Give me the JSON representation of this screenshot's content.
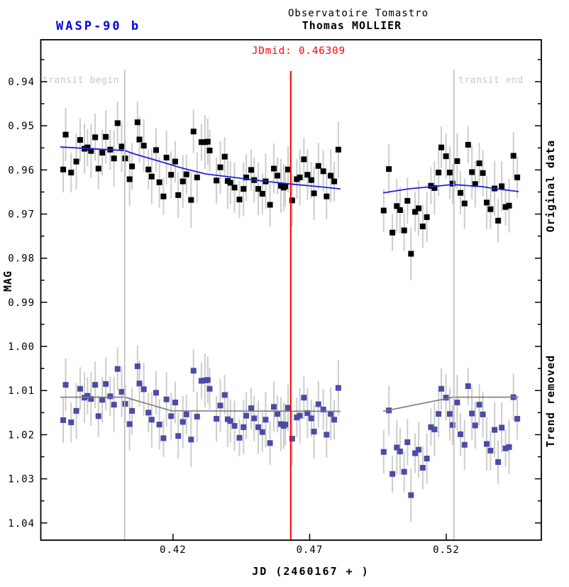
{
  "header": {
    "planet": "WASP-90 b",
    "observatory": "Observatoire Tomastro",
    "observer": "Thomas MOLLIER"
  },
  "annotations": {
    "jdmid_label": "JDmid: 0.46309",
    "jdmid_jd": 0.46309,
    "transit_begin_label": "transit begin",
    "transit_begin_jd": 0.4023,
    "transit_end_label": "transit end",
    "transit_end_jd": 0.5228
  },
  "axes": {
    "xlabel": "JD (2460167 + )",
    "ylabel": "MAG",
    "xticks": [
      0.42,
      0.47,
      0.52
    ],
    "yticks": [
      0.94,
      0.95,
      0.96,
      0.97,
      0.98,
      0.99,
      1.0,
      1.01,
      1.02,
      1.03,
      1.04
    ],
    "y_minor_step": 0.005,
    "xlim": [
      0.3716,
      0.5548
    ],
    "ylim": [
      0.9305,
      1.0439
    ]
  },
  "series_labels": {
    "original": "Original data",
    "detrended": "Trend removed"
  },
  "colors": {
    "original_points": "#000000",
    "detrended_points": "#4b4ba6",
    "original_trend_curve": "#2121dd",
    "detrended_model_curve": "#7a7a7a",
    "jdmid_line": "#ff0000",
    "transit_lines": "#bdbdbd",
    "transit_labels": "#c9c9c9",
    "error_bars": "#cdcdcd",
    "planet_title": "#0000e6"
  },
  "chart_data": {
    "type": "scatter",
    "title": "WASP-90 b",
    "xlabel": "JD (2460167 + )",
    "ylabel": "MAG",
    "xlim": [
      0.3716,
      0.5548
    ],
    "ylim": [
      0.9305,
      1.0439
    ],
    "xticks": [
      0.42,
      0.47,
      0.52
    ],
    "yticks": [
      0.94,
      0.95,
      0.96,
      0.97,
      0.98,
      0.99,
      1.0,
      1.01,
      1.02,
      1.03,
      1.04
    ],
    "grid": false,
    "y_axis_is_magnitude_increasing_down": true,
    "jd": [
      0.3798,
      0.3807,
      0.3827,
      0.3846,
      0.386,
      0.3876,
      0.3887,
      0.39,
      0.3915,
      0.3927,
      0.3941,
      0.3954,
      0.397,
      0.3984,
      0.3997,
      0.4012,
      0.4025,
      0.4041,
      0.405,
      0.407,
      0.4077,
      0.4093,
      0.411,
      0.4122,
      0.4138,
      0.415,
      0.4165,
      0.4176,
      0.4193,
      0.4208,
      0.4219,
      0.4236,
      0.4249,
      0.4266,
      0.4275,
      0.4288,
      0.4304,
      0.4317,
      0.4327,
      0.4334,
      0.4359,
      0.4373,
      0.4389,
      0.44,
      0.441,
      0.4425,
      0.4443,
      0.4458,
      0.4468,
      0.4486,
      0.4497,
      0.4512,
      0.4527,
      0.4539,
      0.4555,
      0.4569,
      0.4582,
      0.4595,
      0.4605,
      0.4611,
      0.4621,
      0.4636,
      0.4653,
      0.4664,
      0.4679,
      0.4692,
      0.4706,
      0.4716,
      0.4732,
      0.475,
      0.4762,
      0.4777,
      0.479,
      0.4805,
      0.4971,
      0.499,
      0.5003,
      0.5019,
      0.5031,
      0.5046,
      0.5058,
      0.5071,
      0.5086,
      0.5099,
      0.5114,
      0.5129,
      0.5144,
      0.5157,
      0.5172,
      0.5182,
      0.5199,
      0.5213,
      0.5223,
      0.524,
      0.5252,
      0.5267,
      0.528,
      0.5294,
      0.5306,
      0.5321,
      0.5334,
      0.5348,
      0.5362,
      0.5377,
      0.539,
      0.5403,
      0.5417,
      0.543,
      0.5446,
      0.546
    ],
    "err": [
      0.0052,
      0.006,
      0.0045,
      0.0063,
      0.0049,
      0.0057,
      0.0042,
      0.0061,
      0.0053,
      0.0047,
      0.0052,
      0.006,
      0.0045,
      0.0063,
      0.0049,
      0.0057,
      0.0042,
      0.0061,
      0.0053,
      0.0047,
      0.0052,
      0.006,
      0.0045,
      0.0063,
      0.0049,
      0.0057,
      0.0042,
      0.0061,
      0.0053,
      0.0047,
      0.0052,
      0.006,
      0.0045,
      0.0063,
      0.0049,
      0.0057,
      0.0042,
      0.0061,
      0.0053,
      0.0047,
      0.0052,
      0.006,
      0.0045,
      0.0063,
      0.0049,
      0.0057,
      0.0042,
      0.0061,
      0.0053,
      0.0047,
      0.0052,
      0.006,
      0.0045,
      0.0063,
      0.0049,
      0.0057,
      0.0042,
      0.0061,
      0.0053,
      0.0047,
      0.0052,
      0.006,
      0.0045,
      0.0063,
      0.0049,
      0.0057,
      0.0042,
      0.0061,
      0.0053,
      0.0047,
      0.0052,
      0.006,
      0.0045,
      0.0063,
      0.0049,
      0.0057,
      0.0042,
      0.0061,
      0.0053,
      0.0047,
      0.0052,
      0.006,
      0.0045,
      0.0063,
      0.0049,
      0.0057,
      0.0042,
      0.0061,
      0.0053,
      0.0047,
      0.0052,
      0.006,
      0.0045,
      0.0063,
      0.0049,
      0.0057,
      0.0042,
      0.0061,
      0.0053,
      0.0047,
      0.0052,
      0.006,
      0.0045,
      0.0063,
      0.0049,
      0.0057,
      0.0042,
      0.0061,
      0.0053,
      0.0047
    ],
    "series": [
      {
        "name": "Original data",
        "marker": "square",
        "mag": [
          0.9599,
          0.952,
          0.9606,
          0.9581,
          0.9532,
          0.9552,
          0.9549,
          0.9557,
          0.9526,
          0.9597,
          0.9561,
          0.9525,
          0.9554,
          0.9574,
          0.9494,
          0.9547,
          0.9574,
          0.9621,
          0.9592,
          0.9492,
          0.9531,
          0.9545,
          0.9599,
          0.9615,
          0.9555,
          0.9628,
          0.966,
          0.9572,
          0.9611,
          0.9581,
          0.9657,
          0.9626,
          0.961,
          0.9668,
          0.9513,
          0.9617,
          0.9537,
          0.9537,
          0.9536,
          0.9556,
          0.9624,
          0.9594,
          0.957,
          0.9625,
          0.9629,
          0.964,
          0.9667,
          0.9643,
          0.9617,
          0.96,
          0.9623,
          0.9643,
          0.9654,
          0.9626,
          0.9679,
          0.9597,
          0.9613,
          0.9636,
          0.964,
          0.9637,
          0.9599,
          0.9669,
          0.9621,
          0.9617,
          0.9576,
          0.9611,
          0.9623,
          0.9653,
          0.9591,
          0.9603,
          0.966,
          0.9613,
          0.9626,
          0.9554,
          0.9692,
          0.9598,
          0.9742,
          0.9682,
          0.9691,
          0.9737,
          0.967,
          0.979,
          0.9695,
          0.9687,
          0.9728,
          0.9707,
          0.9636,
          0.9641,
          0.9606,
          0.9549,
          0.9569,
          0.9606,
          0.9631,
          0.958,
          0.9652,
          0.9676,
          0.9543,
          0.9605,
          0.9632,
          0.9585,
          0.9607,
          0.9674,
          0.9689,
          0.9642,
          0.9715,
          0.9637,
          0.9684,
          0.9681,
          0.9568,
          0.9617
        ]
      },
      {
        "name": "Trend removed",
        "marker": "square",
        "mag": [
          1.0167,
          1.0087,
          1.0172,
          1.0146,
          1.0096,
          1.0116,
          1.0112,
          1.0119,
          1.0087,
          1.0158,
          1.0121,
          1.0085,
          1.0113,
          1.0132,
          1.0051,
          1.0103,
          1.013,
          1.0176,
          1.0146,
          1.0045,
          1.0084,
          1.0097,
          1.015,
          1.0166,
          1.0105,
          1.0177,
          1.0208,
          1.012,
          1.0158,
          1.0127,
          1.0203,
          1.0171,
          1.0154,
          1.0211,
          1.0055,
          1.0159,
          1.0078,
          1.0077,
          1.0076,
          1.0096,
          1.0164,
          1.0134,
          1.011,
          1.0165,
          1.0169,
          1.018,
          1.0207,
          1.0183,
          1.0157,
          1.014,
          1.0163,
          1.0183,
          1.0194,
          1.0166,
          1.0219,
          1.0137,
          1.0153,
          1.0176,
          1.018,
          1.0177,
          1.0139,
          1.0209,
          1.0161,
          1.0157,
          1.0116,
          1.0151,
          1.0163,
          1.0193,
          1.0131,
          1.0143,
          1.02,
          1.0153,
          1.0166,
          1.0094,
          1.0239,
          1.0145,
          1.0289,
          1.0229,
          1.0238,
          1.0284,
          1.0217,
          1.0337,
          1.0242,
          1.0234,
          1.0275,
          1.0254,
          1.0183,
          1.0188,
          1.0153,
          1.0096,
          1.0116,
          1.0153,
          1.0178,
          1.0127,
          1.0199,
          1.0223,
          1.009,
          1.0152,
          1.0179,
          1.0132,
          1.0154,
          1.0221,
          1.0236,
          1.0189,
          1.0262,
          1.0184,
          1.0231,
          1.0228,
          1.0115,
          1.0164
        ]
      }
    ],
    "curves": [
      {
        "name": "original-trend-model",
        "segments": [
          [
            [
              0.3787,
              0.9548
            ],
            [
              0.393,
              0.9553
            ],
            [
              0.4023,
              0.9556
            ],
            [
              0.406,
              0.9564
            ],
            [
              0.4148,
              0.958
            ],
            [
              0.4234,
              0.9596
            ],
            [
              0.4319,
              0.9609
            ],
            [
              0.4423,
              0.9617
            ],
            [
              0.4527,
              0.9625
            ],
            [
              0.4631,
              0.9632
            ],
            [
              0.4735,
              0.9638
            ],
            [
              0.4813,
              0.9643
            ]
          ],
          [
            [
              0.4969,
              0.9652
            ],
            [
              0.506,
              0.9643
            ],
            [
              0.5146,
              0.9638
            ],
            [
              0.5223,
              0.9633
            ],
            [
              0.5332,
              0.9638
            ],
            [
              0.5384,
              0.9643
            ],
            [
              0.5465,
              0.9649
            ]
          ]
        ]
      },
      {
        "name": "detrended-transit-model",
        "segments": [
          [
            [
              0.3787,
              1.0115
            ],
            [
              0.4023,
              1.0115
            ],
            [
              0.4195,
              1.0146
            ],
            [
              0.4813,
              1.0147
            ]
          ],
          [
            [
              0.4969,
              1.0147
            ],
            [
              0.5226,
              1.0115
            ],
            [
              0.5465,
              1.0115
            ]
          ]
        ]
      }
    ],
    "vlines": [
      {
        "name": "transit-begin",
        "jd": 0.4023
      },
      {
        "name": "jdmid",
        "jd": 0.46309
      },
      {
        "name": "transit-end",
        "jd": 0.5228
      }
    ]
  }
}
